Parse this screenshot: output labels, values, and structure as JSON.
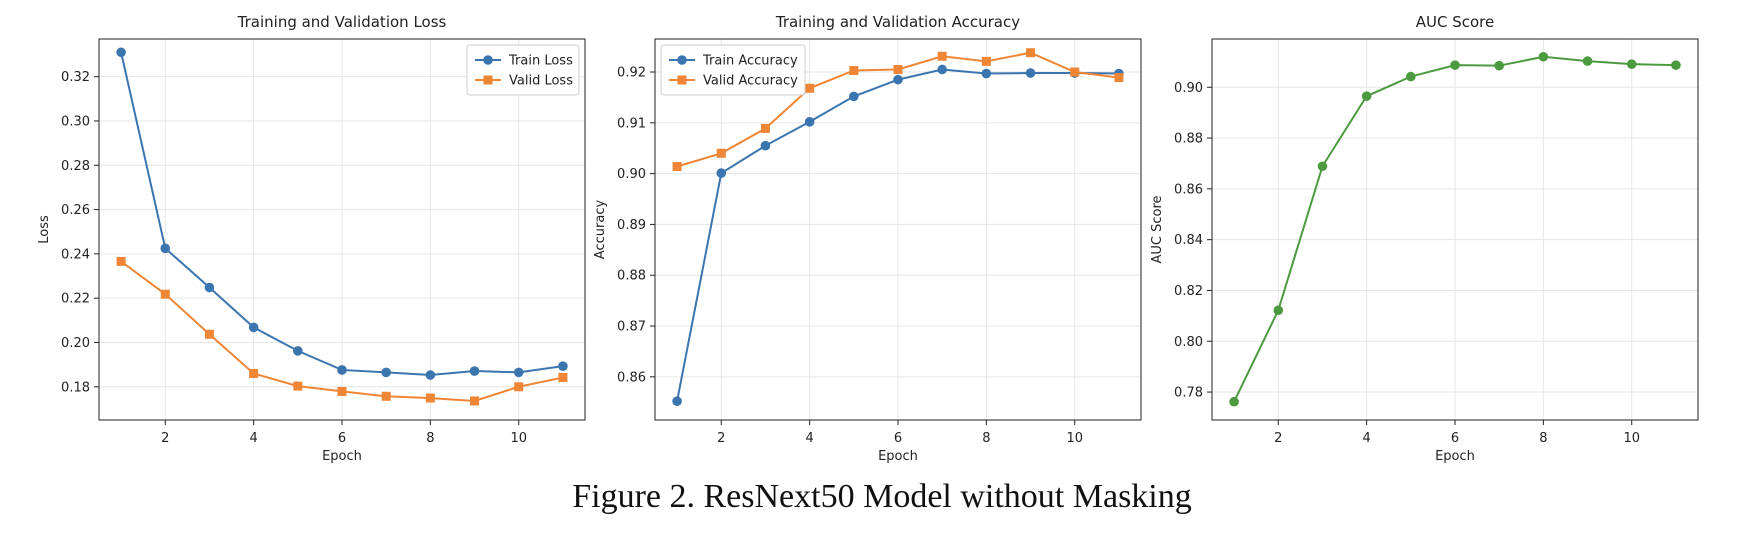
{
  "caption": "Figure 2. ResNext50 Model without Masking",
  "chart_data": [
    {
      "type": "line",
      "title": "Training and Validation Loss",
      "xlabel": "Epoch",
      "ylabel": "Loss",
      "xlim": [
        0.5,
        11.5
      ],
      "ylim": [
        0.165,
        0.337
      ],
      "xticks": [
        2,
        4,
        6,
        8,
        10
      ],
      "yticks": [
        0.18,
        0.2,
        0.22,
        0.24,
        0.26,
        0.28,
        0.3,
        0.32
      ],
      "ytick_decimals": 2,
      "grid": true,
      "legend": "top-right",
      "x": [
        1,
        2,
        3,
        4,
        5,
        6,
        7,
        8,
        9,
        10,
        11
      ],
      "series": [
        {
          "name": "Train Loss",
          "color": "#3b75af",
          "marker": "circle",
          "values": [
            0.331,
            0.2425,
            0.2248,
            0.2068,
            0.1962,
            0.1876,
            0.1865,
            0.1853,
            0.1871,
            0.1865,
            0.1893
          ]
        },
        {
          "name": "Valid Loss",
          "color": "#ef8636",
          "marker": "square",
          "values": [
            0.2366,
            0.2218,
            0.2037,
            0.186,
            0.1803,
            0.1779,
            0.1757,
            0.1749,
            0.1736,
            0.18,
            0.1842
          ]
        }
      ]
    },
    {
      "type": "line",
      "title": "Training and Validation Accuracy",
      "xlabel": "Epoch",
      "ylabel": "Accuracy",
      "xlim": [
        0.5,
        11.5
      ],
      "ylim": [
        0.8515,
        0.9265
      ],
      "xticks": [
        2,
        4,
        6,
        8,
        10
      ],
      "yticks": [
        0.86,
        0.87,
        0.88,
        0.89,
        0.9,
        0.91,
        0.92
      ],
      "ytick_decimals": 2,
      "grid": true,
      "legend": "top-left",
      "x": [
        1,
        2,
        3,
        4,
        5,
        6,
        7,
        8,
        9,
        10,
        11
      ],
      "series": [
        {
          "name": "Train Accuracy",
          "color": "#3b75af",
          "marker": "circle",
          "values": [
            0.8552,
            0.9001,
            0.9055,
            0.9102,
            0.9152,
            0.9185,
            0.9205,
            0.9197,
            0.9198,
            0.9198,
            0.9197
          ]
        },
        {
          "name": "Valid Accuracy",
          "color": "#ef8636",
          "marker": "square",
          "values": [
            0.9014,
            0.904,
            0.9089,
            0.9168,
            0.9203,
            0.9205,
            0.9231,
            0.9221,
            0.9238,
            0.92,
            0.9189
          ]
        }
      ]
    },
    {
      "type": "line",
      "title": "AUC Score",
      "xlabel": "Epoch",
      "ylabel": "AUC Score",
      "xlim": [
        0.5,
        11.5
      ],
      "ylim": [
        0.769,
        0.919
      ],
      "xticks": [
        2,
        4,
        6,
        8,
        10
      ],
      "yticks": [
        0.78,
        0.8,
        0.82,
        0.84,
        0.86,
        0.88,
        0.9
      ],
      "ytick_decimals": 2,
      "grid": true,
      "legend": "none",
      "x": [
        1,
        2,
        3,
        4,
        5,
        6,
        7,
        8,
        9,
        10,
        11
      ],
      "series": [
        {
          "name": "",
          "color": "#4c9a3f",
          "marker": "circle",
          "values": [
            0.7762,
            0.8122,
            0.8689,
            0.8965,
            0.9042,
            0.9087,
            0.9085,
            0.912,
            0.9103,
            0.9091,
            0.9087
          ]
        }
      ]
    }
  ]
}
